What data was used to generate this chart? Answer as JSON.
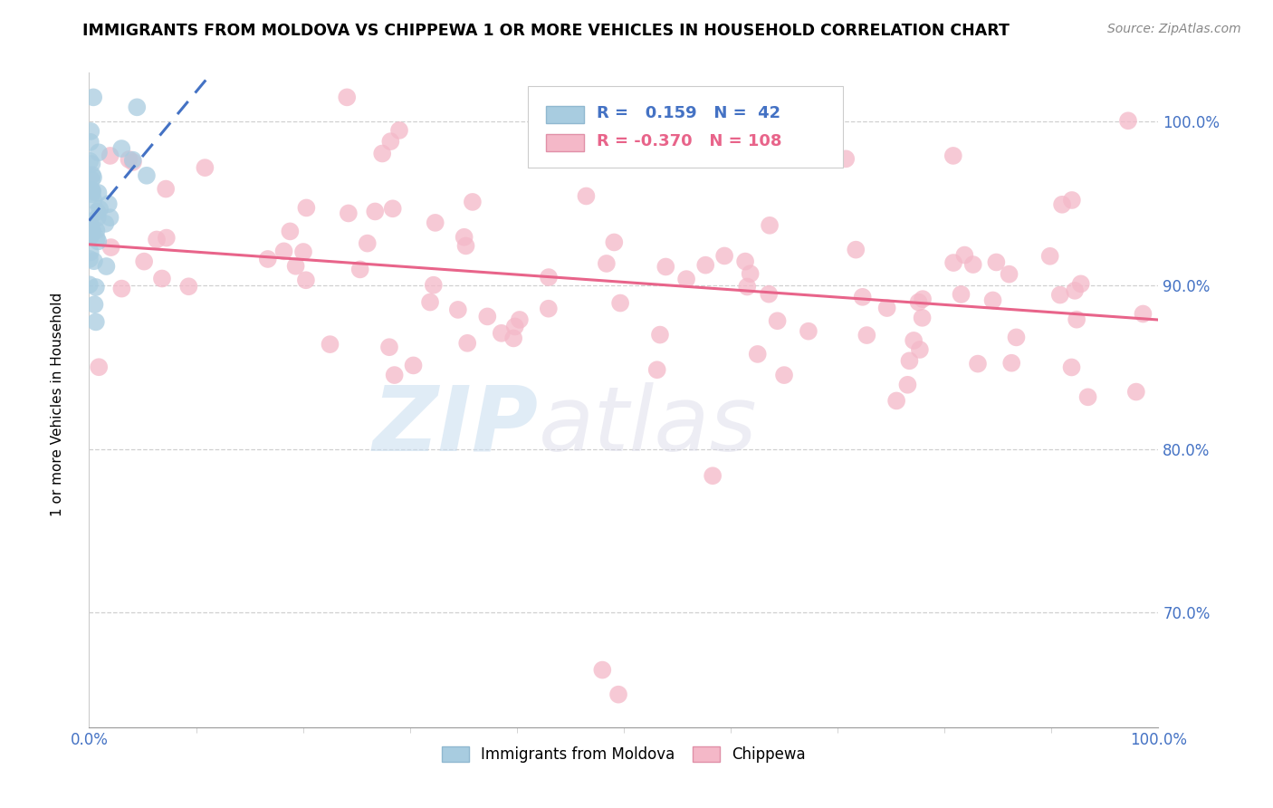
{
  "title": "IMMIGRANTS FROM MOLDOVA VS CHIPPEWA 1 OR MORE VEHICLES IN HOUSEHOLD CORRELATION CHART",
  "source": "Source: ZipAtlas.com",
  "ylabel": "1 or more Vehicles in Household",
  "R_blue": 0.159,
  "N_blue": 42,
  "R_pink": -0.37,
  "N_pink": 108,
  "blue_color": "#a8cce0",
  "pink_color": "#f4b8c8",
  "blue_line_color": "#4472c4",
  "pink_line_color": "#e8648a",
  "legend_blue_label": "Immigrants from Moldova",
  "legend_pink_label": "Chippewa",
  "xlim": [
    0,
    100
  ],
  "ylim": [
    63,
    103
  ],
  "yticks": [
    70,
    80,
    90,
    100
  ],
  "dpi": 100,
  "figsize": [
    14.06,
    8.92
  ],
  "blue_seed": 77,
  "pink_seed": 55
}
